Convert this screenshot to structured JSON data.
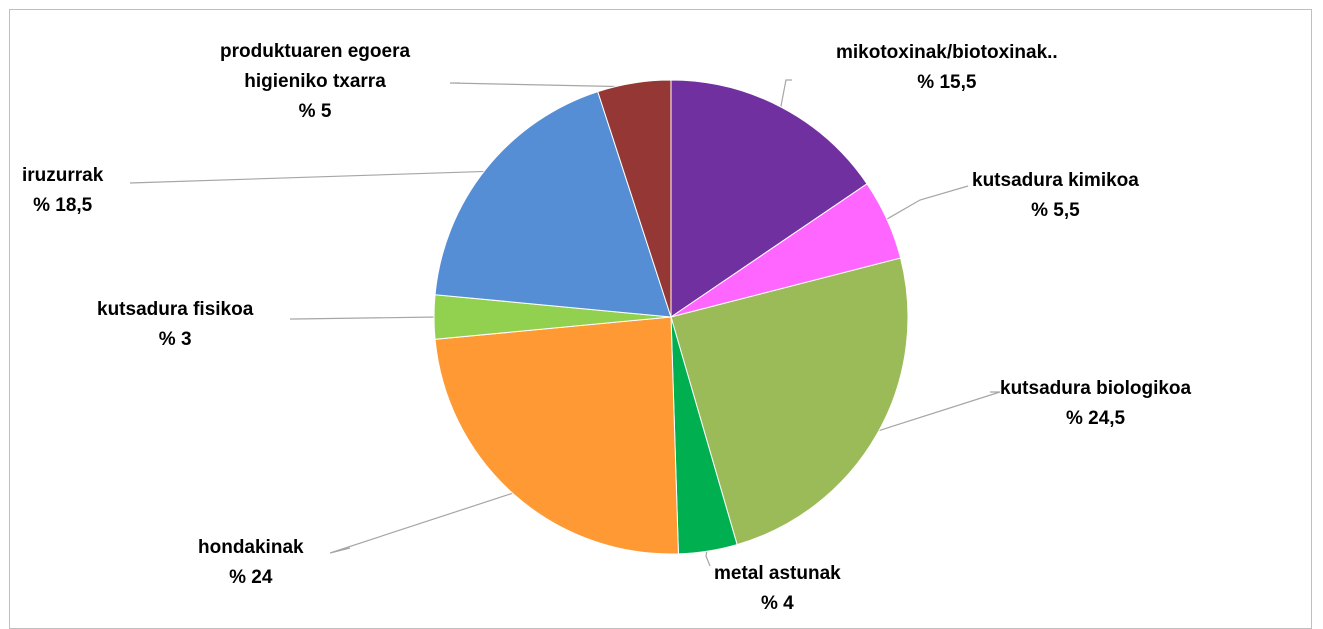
{
  "chart_data": {
    "type": "pie",
    "start_angle_deg": 0,
    "direction": "clockwise",
    "legend": "none",
    "slices": [
      {
        "label": "mikotoxinak/biotoxinak..",
        "value": 15.5,
        "value_label": "% 15,5",
        "color": "#7030a0"
      },
      {
        "label": "kutsadura kimikoa",
        "value": 5.5,
        "value_label": "% 5,5",
        "color": "#ff66ff"
      },
      {
        "label": "kutsadura biologikoa",
        "value": 24.5,
        "value_label": "% 24,5",
        "color": "#9bbb59"
      },
      {
        "label": "metal astunak",
        "value": 4,
        "value_label": "% 4",
        "color": "#00b050"
      },
      {
        "label": "hondakinak",
        "value": 24,
        "value_label": "% 24",
        "color": "#ff9933"
      },
      {
        "label": "kutsadura fisikoa",
        "value": 3,
        "value_label": "% 3",
        "color": "#92d050"
      },
      {
        "label": "iruzurrak",
        "value": 18.5,
        "value_label": "% 18,5",
        "color": "#558ed5"
      },
      {
        "label": "produktuaren egoera higieniko txarra",
        "label_lines": [
          "produktuaren egoera",
          "higieniko txarra"
        ],
        "value": 5,
        "value_label": "% 5",
        "color": "#953735"
      }
    ]
  }
}
